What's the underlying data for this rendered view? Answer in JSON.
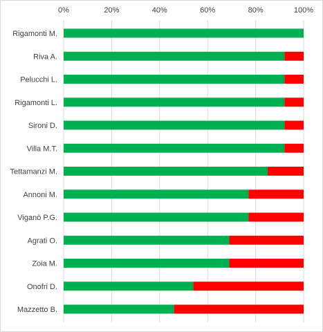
{
  "chart_data": {
    "type": "bar",
    "orientation": "horizontal",
    "stacked": "percent",
    "categories": [
      "Rigamonti M.",
      "Riva A.",
      "Pelucchi L.",
      "Rigamonti L.",
      "Sironi D.",
      "Villa M.T.",
      "Tettamanzi M.",
      "Annoni M.",
      "Viganò P.G.",
      "Agrati O.",
      "Zoia M.",
      "Onofri D.",
      "Mazzetto B."
    ],
    "series": [
      {
        "color": "#00b050",
        "values": [
          100,
          92,
          92,
          92,
          92,
          92,
          85,
          77,
          77,
          69,
          69,
          54,
          46
        ]
      },
      {
        "color": "#ff0000",
        "values": [
          0,
          8,
          8,
          8,
          8,
          8,
          15,
          23,
          23,
          31,
          31,
          46,
          54
        ]
      }
    ],
    "x_ticks": [
      "0%",
      "20%",
      "40%",
      "60%",
      "80%",
      "100%"
    ],
    "xlim": [
      0,
      100
    ],
    "x_axis_position": "top",
    "grid": true,
    "legend": "none"
  }
}
